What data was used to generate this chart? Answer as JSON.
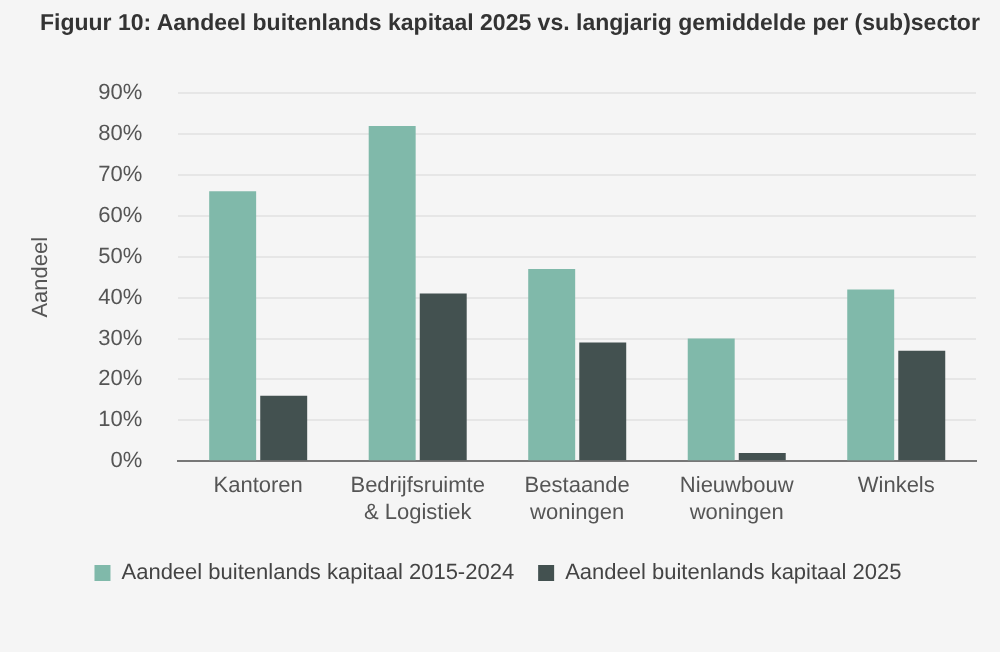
{
  "chart_data": {
    "type": "bar",
    "title": "Figuur 10: Aandeel buitenlands kapitaal 2025 vs. langjarig gemiddelde per (sub)sector",
    "ylabel": "Aandeel",
    "categories": [
      "Kantoren",
      "Bedrijfsruimte & Logistiek",
      "Bestaande woningen",
      "Nieuwbouw woningen",
      "Winkels"
    ],
    "series": [
      {
        "name": "Aandeel buitenlands kapitaal 2015-2024",
        "color": "#80b9aa",
        "values": [
          66,
          82,
          47,
          30,
          42
        ]
      },
      {
        "name": "Aandeel buitenlands kapitaal 2025",
        "color": "#435150",
        "values": [
          16,
          41,
          29,
          2,
          27
        ]
      }
    ],
    "ylim": [
      0,
      90
    ],
    "yticks": [
      {
        "value": 0,
        "label": "0%"
      },
      {
        "value": 10,
        "label": "10%"
      },
      {
        "value": 20,
        "label": "20%"
      },
      {
        "value": 30,
        "label": "30%"
      },
      {
        "value": 40,
        "label": "40%"
      },
      {
        "value": 50,
        "label": "50%"
      },
      {
        "value": 60,
        "label": "60%"
      },
      {
        "value": 70,
        "label": "70%"
      },
      {
        "value": 80,
        "label": "80%"
      },
      {
        "value": 90,
        "label": "90%"
      }
    ],
    "grid": "y",
    "legend": "bottom"
  }
}
